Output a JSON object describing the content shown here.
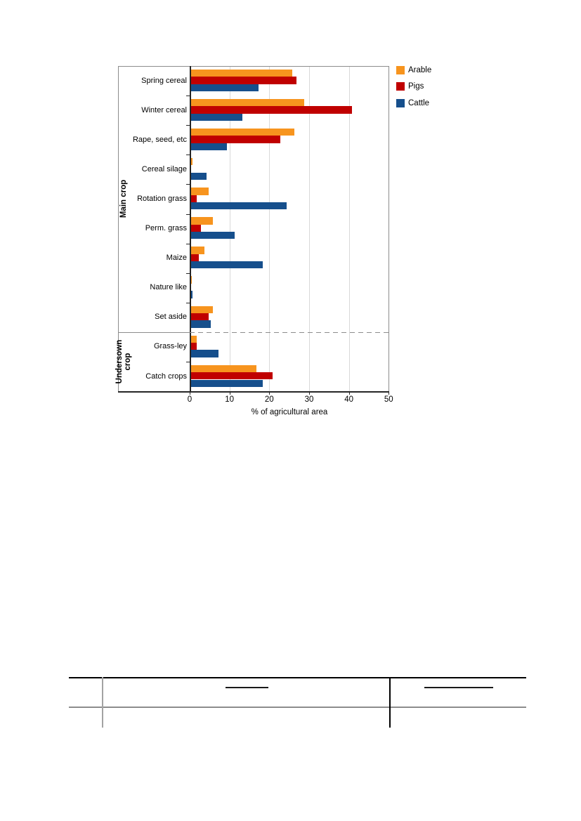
{
  "page": {
    "background": "#ffffff",
    "description_visible_content": "figure with horizontal grouped bar chart and empty ruled table at page bottom"
  },
  "chart_data": {
    "type": "bar",
    "orientation": "horizontal",
    "title": "",
    "xlabel": "% of agricultural area",
    "ylabel": "",
    "xlim": [
      0,
      50
    ],
    "x_ticks": [
      0,
      10,
      20,
      30,
      40,
      50
    ],
    "grid": "vertical gridlines every 10",
    "legend_position": "top-right outside plot",
    "categories": [
      "Spring cereal",
      "Winter cereal",
      "Rape, seed, etc",
      "Cereal silage",
      "Rotation grass",
      "Perm. grass",
      "Maize",
      "Nature like",
      "Set aside",
      "Grass-ley",
      "Catch crops"
    ],
    "series": [
      {
        "name": "Arable",
        "color": "#F7941E",
        "values": [
          25.5,
          28.5,
          26,
          0.5,
          4.5,
          5.5,
          3.5,
          0.2,
          5.5,
          1.5,
          16.5
        ]
      },
      {
        "name": "Pigs",
        "color": "#C00000",
        "values": [
          26.5,
          40.5,
          22.5,
          0,
          1.5,
          2.5,
          2,
          0,
          4.5,
          1.5,
          20.5
        ]
      },
      {
        "name": "Cattle",
        "color": "#164F8C",
        "values": [
          17,
          13,
          9,
          4,
          24,
          11,
          18,
          0.5,
          5,
          7,
          18
        ]
      }
    ],
    "category_groups": [
      {
        "label": "Main crop",
        "from": 0,
        "to": 8
      },
      {
        "label": "Undersown crop",
        "from": 9,
        "to": 10
      }
    ],
    "separator": "dashed horizontal line between Set aside and Grass-ley",
    "style_colors": {
      "gridline": "#d9d9d9",
      "frame": "#8c8c8c",
      "axis": "#262626",
      "dashed_separator": "#8c8c8c"
    }
  }
}
